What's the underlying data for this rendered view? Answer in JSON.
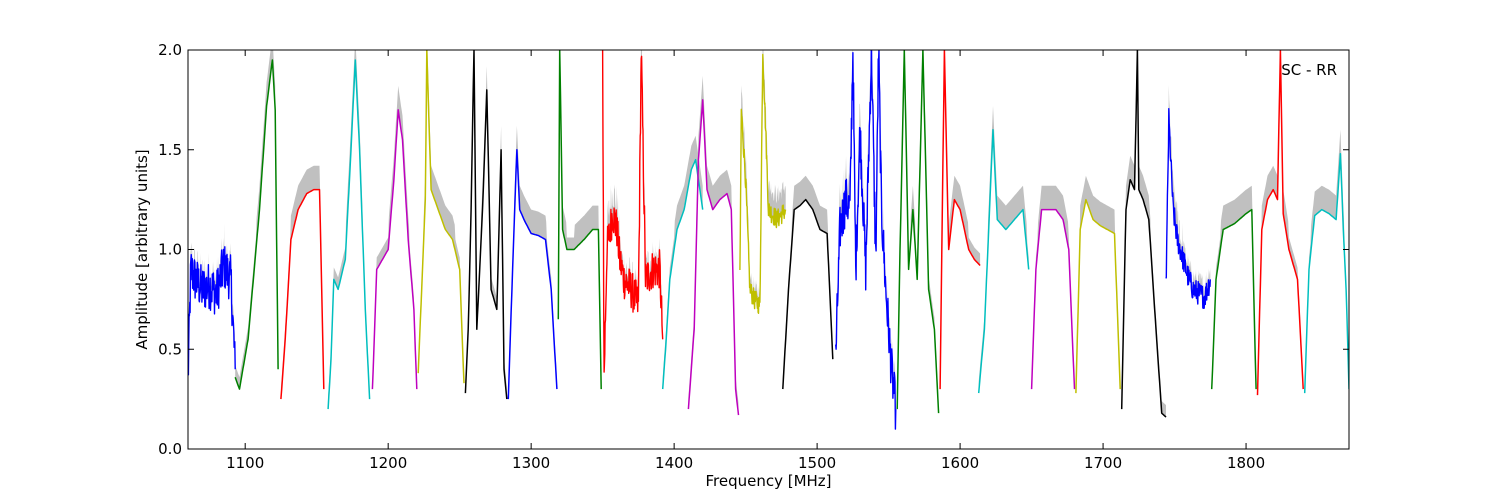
{
  "chart_data": {
    "type": "line",
    "title": "",
    "annotation": "SC - RR",
    "xlabel": "Frequency [MHz]",
    "ylabel": "Amplitude [arbitrary units]",
    "xlim": [
      1060,
      1872
    ],
    "ylim": [
      0.0,
      2.0
    ],
    "x_ticks": [
      1100,
      1200,
      1300,
      1400,
      1500,
      1600,
      1700,
      1800
    ],
    "x_tick_labels": [
      "1100",
      "1200",
      "1300",
      "1400",
      "1500",
      "1600",
      "1700",
      "1800"
    ],
    "y_ticks": [
      0.0,
      0.5,
      1.0,
      1.5,
      2.0
    ],
    "y_tick_labels": [
      "0.0",
      "0.5",
      "1.0",
      "1.5",
      "2.0"
    ],
    "grid": false,
    "colors": {
      "band_gray": "#c0c0c0",
      "cycle": [
        "#0000ff",
        "#008000",
        "#ff0000",
        "#00bfbf",
        "#bf00bf",
        "#bfbf00",
        "#000000"
      ]
    },
    "series": [
      {
        "color": "#0000ff",
        "x": [
          1060,
          1062,
          1065,
          1070,
          1075,
          1080,
          1085,
          1090,
          1093
        ],
        "y": [
          0.35,
          0.9,
          0.85,
          0.8,
          0.82,
          0.78,
          0.92,
          0.85,
          0.4
        ],
        "noisy": true,
        "amp": 0.12
      },
      {
        "color": "#008000",
        "x": [
          1093,
          1096,
          1102,
          1110,
          1115,
          1119,
          1121,
          1123
        ],
        "y": [
          0.36,
          0.3,
          0.55,
          1.2,
          1.72,
          1.95,
          1.7,
          0.4
        ]
      },
      {
        "color": "#ff0000",
        "x": [
          1125,
          1128,
          1132,
          1137,
          1143,
          1148,
          1152,
          1155
        ],
        "y": [
          0.25,
          0.55,
          1.05,
          1.2,
          1.28,
          1.3,
          1.3,
          0.3
        ]
      },
      {
        "color": "#00bfbf",
        "x": [
          1158,
          1160,
          1162,
          1165,
          1170,
          1174,
          1177,
          1180,
          1184,
          1187
        ],
        "y": [
          0.2,
          0.45,
          0.85,
          0.8,
          0.95,
          1.5,
          1.95,
          1.5,
          0.7,
          0.25
        ]
      },
      {
        "color": "#bf00bf",
        "x": [
          1189,
          1192,
          1196,
          1200,
          1204,
          1207,
          1210,
          1214,
          1218,
          1220
        ],
        "y": [
          0.3,
          0.9,
          0.95,
          1.0,
          1.35,
          1.7,
          1.55,
          1.05,
          0.7,
          0.3
        ]
      },
      {
        "color": "#bfbf00",
        "x": [
          1221,
          1224,
          1226,
          1227,
          1230,
          1235,
          1240,
          1245,
          1250,
          1253
        ],
        "y": [
          0.38,
          0.9,
          1.25,
          2.0,
          1.3,
          1.2,
          1.1,
          1.05,
          0.9,
          0.33
        ]
      },
      {
        "color": "#000000",
        "x": [
          1254,
          1256,
          1258,
          1260,
          1262,
          1266,
          1269,
          1272,
          1276,
          1279,
          1281,
          1283
        ],
        "y": [
          0.28,
          0.6,
          1.2,
          2.0,
          0.6,
          1.2,
          1.8,
          0.8,
          0.7,
          1.5,
          0.4,
          0.25
        ]
      },
      {
        "color": "#0000ff",
        "x": [
          1284,
          1287,
          1290,
          1292,
          1295,
          1300,
          1305,
          1310,
          1314,
          1318
        ],
        "y": [
          0.25,
          0.9,
          1.5,
          1.2,
          1.15,
          1.08,
          1.07,
          1.05,
          0.8,
          0.3
        ]
      },
      {
        "color": "#008000",
        "x": [
          1319,
          1320,
          1322,
          1325,
          1330,
          1337,
          1343,
          1347,
          1349
        ],
        "y": [
          0.65,
          2.0,
          1.1,
          1.0,
          1.0,
          1.05,
          1.1,
          1.1,
          0.3
        ]
      },
      {
        "color": "#ff0000",
        "x": [
          1350,
          1351,
          1353,
          1357,
          1360,
          1362,
          1365,
          1370,
          1375,
          1377,
          1380,
          1385,
          1390,
          1392
        ],
        "y": [
          2.0,
          0.35,
          1.0,
          1.18,
          1.1,
          0.95,
          0.85,
          0.8,
          0.72,
          2.0,
          0.85,
          0.9,
          0.9,
          0.55
        ],
        "noisy": true,
        "amp": 0.1
      },
      {
        "color": "#00bfbf",
        "x": [
          1392,
          1394,
          1397,
          1402,
          1407,
          1412,
          1415,
          1418,
          1420
        ],
        "y": [
          0.3,
          0.5,
          0.85,
          1.1,
          1.2,
          1.4,
          1.45,
          1.3,
          1.2
        ]
      },
      {
        "color": "#bf00bf",
        "x": [
          1410,
          1414,
          1417,
          1420,
          1423,
          1427,
          1432,
          1437,
          1440,
          1443,
          1445
        ],
        "y": [
          0.2,
          0.6,
          1.45,
          1.75,
          1.3,
          1.2,
          1.25,
          1.28,
          1.2,
          0.3,
          0.17
        ]
      },
      {
        "color": "#bfbf00",
        "x": [
          1446,
          1447,
          1450,
          1453,
          1456,
          1460,
          1462,
          1466,
          1472,
          1478
        ],
        "y": [
          0.85,
          1.7,
          1.35,
          0.8,
          0.75,
          0.72,
          2.0,
          1.2,
          1.15,
          1.2
        ],
        "noisy": true,
        "amp": 0.05
      },
      {
        "color": "#000000",
        "x": [
          1476,
          1480,
          1484,
          1488,
          1492,
          1497,
          1502,
          1507,
          1511
        ],
        "y": [
          0.3,
          0.8,
          1.2,
          1.22,
          1.25,
          1.2,
          1.1,
          1.08,
          0.45
        ]
      },
      {
        "color": "#0000ff",
        "x": [
          1513,
          1516,
          1520,
          1523,
          1525,
          1527,
          1530,
          1534,
          1538,
          1541,
          1543,
          1545,
          1548,
          1552,
          1555
        ],
        "y": [
          0.45,
          1.1,
          1.25,
          1.2,
          2.0,
          0.9,
          1.6,
          0.9,
          2.0,
          0.95,
          2.0,
          1.2,
          0.8,
          0.4,
          0.2
        ],
        "noisy": true,
        "amp": 0.12
      },
      {
        "color": "#008000",
        "x": [
          1556,
          1558,
          1561,
          1564,
          1567,
          1570,
          1574,
          1578,
          1582,
          1585
        ],
        "y": [
          0.2,
          1.0,
          2.0,
          0.9,
          1.2,
          0.85,
          2.0,
          0.8,
          0.6,
          0.18
        ]
      },
      {
        "color": "#ff0000",
        "x": [
          1586,
          1589,
          1592,
          1596,
          1600,
          1603,
          1606,
          1610,
          1614
        ],
        "y": [
          0.3,
          2.0,
          1.0,
          1.25,
          1.2,
          1.1,
          1.0,
          0.95,
          0.92
        ]
      },
      {
        "color": "#00bfbf",
        "x": [
          1613,
          1617,
          1620,
          1623,
          1626,
          1632,
          1638,
          1644,
          1648
        ],
        "y": [
          0.28,
          0.6,
          1.1,
          1.6,
          1.15,
          1.1,
          1.15,
          1.2,
          0.9
        ]
      },
      {
        "color": "#bf00bf",
        "x": [
          1650,
          1653,
          1657,
          1662,
          1667,
          1672,
          1676,
          1680
        ],
        "y": [
          0.3,
          0.9,
          1.2,
          1.2,
          1.2,
          1.15,
          1.0,
          0.3
        ]
      },
      {
        "color": "#bfbf00",
        "x": [
          1681,
          1684,
          1688,
          1693,
          1698,
          1703,
          1708,
          1712
        ],
        "y": [
          0.28,
          1.1,
          1.25,
          1.15,
          1.12,
          1.1,
          1.08,
          0.3
        ]
      },
      {
        "color": "#000000",
        "x": [
          1713,
          1716,
          1719,
          1722,
          1724,
          1725,
          1728,
          1732,
          1737,
          1741,
          1744
        ],
        "y": [
          0.2,
          1.2,
          1.35,
          1.3,
          2.0,
          1.3,
          1.25,
          1.15,
          0.6,
          0.18,
          0.16
        ]
      },
      {
        "color": "#0000ff",
        "x": [
          1744,
          1746,
          1749,
          1752,
          1756,
          1760,
          1763,
          1767,
          1771,
          1775
        ],
        "y": [
          0.8,
          1.65,
          1.2,
          1.05,
          0.95,
          0.85,
          0.8,
          0.78,
          0.76,
          0.85
        ],
        "noisy": true,
        "amp": 0.06
      },
      {
        "color": "#008000",
        "x": [
          1776,
          1779,
          1784,
          1792,
          1800,
          1804,
          1807
        ],
        "y": [
          0.3,
          0.85,
          1.1,
          1.13,
          1.18,
          1.2,
          0.3
        ]
      },
      {
        "color": "#ff0000",
        "x": [
          1808,
          1811,
          1815,
          1819,
          1822,
          1824,
          1826,
          1830,
          1836,
          1840
        ],
        "y": [
          0.27,
          1.1,
          1.25,
          1.3,
          1.25,
          2.0,
          1.18,
          1.0,
          0.85,
          0.3
        ]
      },
      {
        "color": "#00bfbf",
        "x": [
          1841,
          1844,
          1848,
          1853,
          1858,
          1863,
          1866,
          1868,
          1870,
          1872
        ],
        "y": [
          0.28,
          0.9,
          1.17,
          1.2,
          1.18,
          1.15,
          1.48,
          1.1,
          0.8,
          0.3
        ]
      }
    ]
  }
}
